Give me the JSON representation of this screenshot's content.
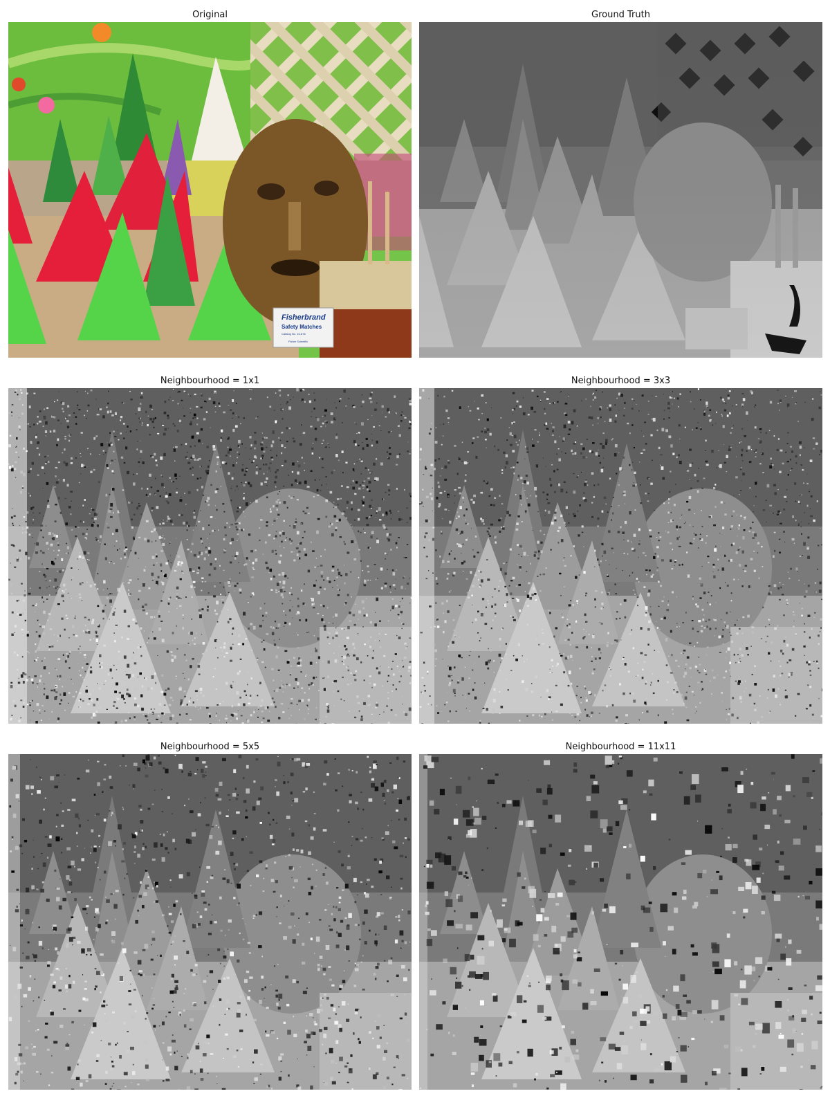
{
  "panels": [
    {
      "title": "Original",
      "kind": "color"
    },
    {
      "title": "Ground Truth",
      "kind": "gt"
    },
    {
      "title": "Neighbourhood = 1x1",
      "kind": "noisy",
      "noise": 0.85
    },
    {
      "title": "Neighbourhood = 3x3",
      "kind": "noisy",
      "noise": 0.6
    },
    {
      "title": "Neighbourhood = 5x5",
      "kind": "noisy",
      "noise": 0.35
    },
    {
      "title": "Neighbourhood = 11x11",
      "kind": "noisy",
      "noise": 0.12
    }
  ],
  "box_label": {
    "brand": "Fisherbrand",
    "product": "Safety Matches",
    "catalog": "Catalog No. 10-876",
    "maker": "Fisher Scientific"
  },
  "colors": {
    "background_green": "#6fbf3f",
    "cone_red": "#e0293f",
    "cone_green": "#58d24a",
    "mask_brown": "#7a5a2a",
    "lattice": "#e6dcc0"
  }
}
